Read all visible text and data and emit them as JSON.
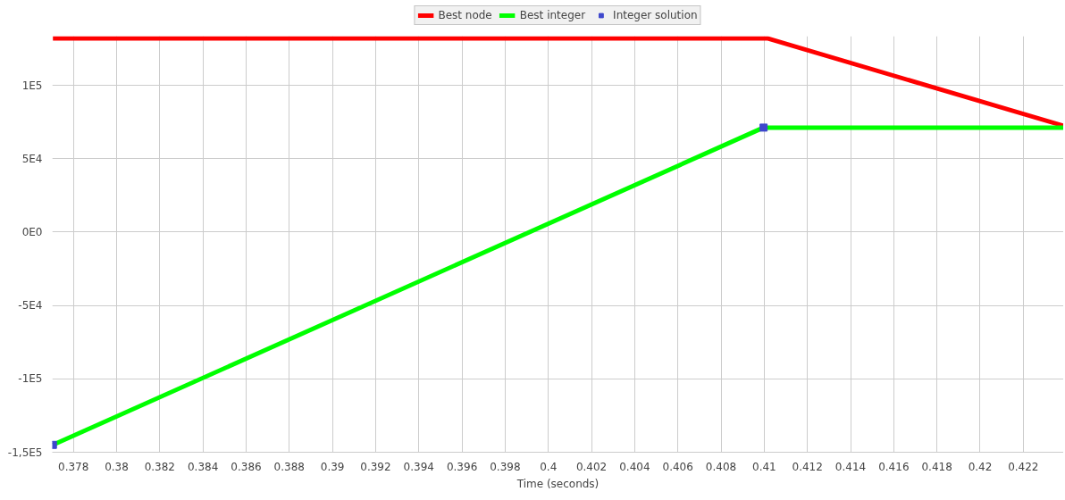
{
  "chart_data": {
    "type": "line",
    "xlabel": "Time (seconds)",
    "xlim": [
      0.37702,
      0.42387
    ],
    "ylim": [
      -150000,
      133500
    ],
    "xticks": [
      0.378,
      {
        "value": 0.38,
        "label": "0.38"
      },
      0.382,
      0.384,
      0.386,
      0.388,
      {
        "value": 0.39,
        "label": "0.39"
      },
      0.392,
      0.394,
      0.396,
      0.398,
      {
        "value": 0.4,
        "label": "0.4"
      },
      0.402,
      0.404,
      0.406,
      0.408,
      {
        "value": 0.41,
        "label": "0.41"
      },
      0.412,
      0.414,
      0.416,
      0.418,
      {
        "value": 0.42,
        "label": "0.42"
      },
      0.422
    ],
    "yticks": [
      {
        "value": -150000,
        "label": "-1,5E5"
      },
      {
        "value": -100000,
        "label": "-1E5"
      },
      {
        "value": -50000,
        "label": "-5E4"
      },
      {
        "value": 0,
        "label": "0E0"
      },
      {
        "value": 50000,
        "label": "5E4"
      },
      {
        "value": 100000,
        "label": "1E5"
      }
    ],
    "grid": true,
    "legend": "top",
    "series": [
      {
        "name": "Best node",
        "color": "#ff0000",
        "x": [
          0.37705,
          0.41014,
          0.42387
        ],
        "values": [
          132000,
          132000,
          72400
        ]
      },
      {
        "name": "Best integer",
        "color": "#00ff00",
        "x": [
          0.37705,
          0.40997,
          0.42387
        ],
        "values": [
          -145000,
          71200,
          71200
        ]
      },
      {
        "name": "Integer solution",
        "type": "scatter",
        "color": "#3f48cc",
        "marker": "square",
        "x": [
          0.37705,
          0.40997
        ],
        "values": [
          -145000,
          71200
        ]
      }
    ]
  }
}
